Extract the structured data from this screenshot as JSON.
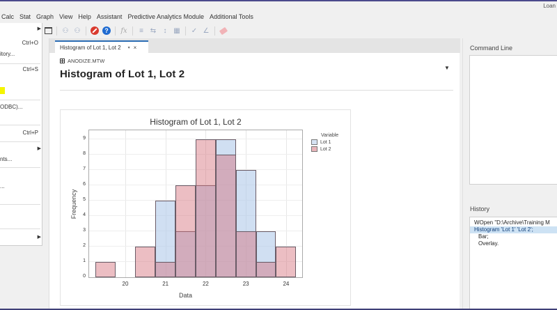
{
  "window": {
    "title_fragment": "Loan"
  },
  "menubar": {
    "items": [
      "Calc",
      "Stat",
      "Graph",
      "View",
      "Help",
      "Assistant",
      "Predictive Analytics Module",
      "Additional Tools"
    ]
  },
  "toolbar": {
    "icons": [
      "window-icon",
      "find-icon",
      "find-next-icon",
      "cancel-icon",
      "help-icon",
      "formula-icon",
      "column-icon",
      "row-icon",
      "insert-icon",
      "edit-icon",
      "brush-icon",
      "link-icon",
      "eraser-icon"
    ],
    "help_glyph": "?",
    "fx_glyph": "fx"
  },
  "dropdown_menu": {
    "items": [
      {
        "label": "",
        "shortcut": "",
        "submenu": true
      },
      {
        "label": "",
        "shortcut": "Ctrl+O",
        "submenu": false
      },
      {
        "label": "itory...",
        "shortcut": "",
        "submenu": false
      },
      {
        "label": "",
        "shortcut": "Ctrl+S",
        "submenu": false
      },
      {
        "label": "ODBC)...",
        "shortcut": "",
        "submenu": false
      },
      {
        "label": "",
        "shortcut": "Ctrl+P",
        "submenu": false
      },
      {
        "label": "",
        "shortcut": "",
        "submenu": true
      },
      {
        "label": "nts...",
        "shortcut": "",
        "submenu": false
      },
      {
        "label": "...",
        "shortcut": "",
        "submenu": false
      },
      {
        "label": "",
        "shortcut": "",
        "submenu": true
      }
    ],
    "highlight_color": "#f5f500"
  },
  "document": {
    "tab_label": "Histogram of Lot 1, Lot 2",
    "tab_caret": "▾",
    "tab_close": "×",
    "worksheet": "ANODIZE.MTW",
    "title": "Histogram of Lot 1, Lot 2",
    "options_caret": "▼"
  },
  "chart_data": {
    "type": "bar",
    "subtype": "histogram-overlay",
    "title": "Histogram of Lot 1, Lot 2",
    "xlabel": "Data",
    "ylabel": "Frequency",
    "bin_width": 0.5,
    "categories": [
      19.5,
      20.0,
      20.5,
      21.0,
      21.5,
      22.0,
      22.5,
      23.0,
      23.5,
      24.0
    ],
    "series": [
      {
        "name": "Lot 1",
        "color": "#b0c9ea",
        "values": [
          0,
          0,
          0,
          5,
          3,
          6,
          9,
          7,
          3,
          0
        ]
      },
      {
        "name": "Lot 2",
        "color": "#e3a6ad",
        "values": [
          1,
          0,
          2,
          1,
          6,
          9,
          8,
          3,
          1,
          2
        ]
      }
    ],
    "xticks": [
      "20",
      "21",
      "22",
      "23",
      "24"
    ],
    "yticks": [
      "0",
      "1",
      "2",
      "3",
      "4",
      "5",
      "6",
      "7",
      "8",
      "9"
    ],
    "xlim": [
      19.1,
      24.4
    ],
    "ylim": [
      0,
      9.6
    ],
    "grid": true,
    "legend": {
      "title": "Variable",
      "position": "right",
      "entries": [
        "Lot 1",
        "Lot 2"
      ]
    }
  },
  "right_panel": {
    "command_line_label": "Command Line",
    "history_label": "History",
    "history_lines": [
      {
        "text": "WOpen \"D:\\Archive\\Training M",
        "selected": false,
        "indent": false
      },
      {
        "text": "Histogram 'Lot 1' 'Lot 2';",
        "selected": true,
        "indent": false
      },
      {
        "text": "Bar;",
        "selected": false,
        "indent": true
      },
      {
        "text": "Overlay.",
        "selected": false,
        "indent": true
      }
    ]
  }
}
